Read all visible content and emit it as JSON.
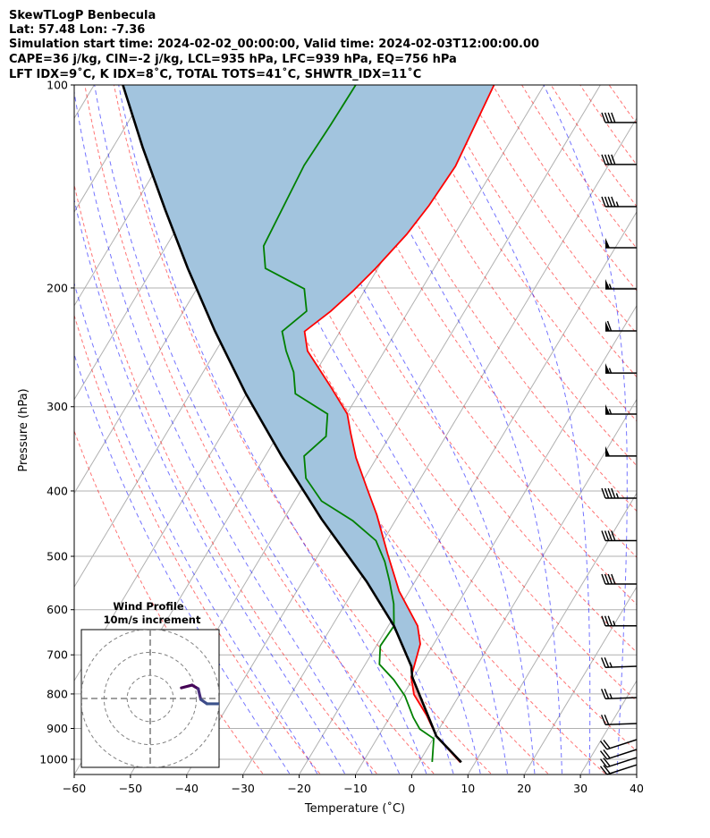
{
  "chart_data": {
    "type": "line",
    "title_lines": [
      "SkewTLogP Benbecula",
      "Lat: 57.48   Lon: -7.36",
      "Simulation start time: 2024-02-02_00:00:00, Valid time: 2024-02-03T12:00:00.00",
      "CAPE=36 j/kg, CIN=-2 j/kg, LCL=935 hPa, LFC=939 hPa, EQ=756 hPa",
      "LFT IDX=9˚C, K IDX=8˚C, TOTAL TOTS=41˚C, SHWTR_IDX=11˚C"
    ],
    "xlabel": "Temperature (˚C)",
    "ylabel": "Pressure (hPa)",
    "xlim": [
      -60,
      40
    ],
    "ylim": [
      1050,
      100
    ],
    "xticks": [
      "−60",
      "−50",
      "−40",
      "−30",
      "−20",
      "−10",
      "0",
      "10",
      "20",
      "30",
      "40"
    ],
    "xtick_values": [
      -60,
      -50,
      -40,
      -30,
      -20,
      -10,
      0,
      10,
      20,
      30,
      40
    ],
    "yticks": [
      "100",
      "200",
      "300",
      "400",
      "500",
      "600",
      "700",
      "800",
      "900",
      "1000"
    ],
    "ytick_values": [
      100,
      200,
      300,
      400,
      500,
      600,
      700,
      800,
      900,
      1000
    ],
    "grid": true,
    "series": [
      {
        "name": "temperature",
        "color": "#ff0000",
        "p": [
          1010,
          924,
          860,
          802,
          755,
          674.5,
          634,
          563,
          496,
          434,
          397,
          357,
          328,
          307.6,
          280,
          248,
          232,
          216.5,
          202,
          187,
          166.5,
          151,
          132,
          100
        ],
        "T": [
          7.3,
          0.3,
          -3.7,
          -8.1,
          -10.5,
          -12.4,
          -14.8,
          -21.8,
          -27.8,
          -33.9,
          -38.4,
          -43.7,
          -47.3,
          -49.9,
          -55.8,
          -63.7,
          -66.3,
          -63.8,
          -62.0,
          -60.4,
          -58.5,
          -57.6,
          -57.1,
          -58.9
        ]
      },
      {
        "name": "dewpoint",
        "color": "#008000",
        "p": [
          1009,
          932,
          902,
          867,
          805,
          762,
          723,
          679,
          634,
          588,
          545,
          509,
          474,
          443,
          414,
          383,
          355,
          332,
          307.6,
          287,
          266.6,
          248,
          232,
          216.5,
          200.6,
          187,
          173.3,
          131.6,
          114.7,
          100
        ],
        "T": [
          2.3,
          0.1,
          -3.4,
          -5.8,
          -9.6,
          -13.3,
          -17.5,
          -19.3,
          -19.0,
          -21.4,
          -24.5,
          -27.5,
          -31.3,
          -37.5,
          -45.2,
          -50.4,
          -53.1,
          -51.3,
          -53.4,
          -61.3,
          -63.9,
          -67.5,
          -70.3,
          -68.1,
          -70.9,
          -80.0,
          -82.7,
          -84.1,
          -83.7,
          -83.5
        ]
      },
      {
        "name": "parcel",
        "color": "#000000",
        "p": [
          1010,
          924,
          755,
          728,
          634,
          545,
          440,
          355,
          287,
          231.6,
          187,
          153.3,
          123.8,
          100
        ],
        "T": [
          7.5,
          0.3,
          -10.3,
          -11.6,
          -19.0,
          -28.6,
          -43.3,
          -57.1,
          -70.1,
          -82.3,
          -93.8,
          -104,
          -114.7,
          -124.9
        ]
      }
    ],
    "shading": {
      "cin_color": "#a2c4de",
      "cape_color": "#f4b6b6"
    },
    "wind_barbs": {
      "p": [
        113.7,
        131.2,
        151.5,
        174.3,
        200.6,
        231.6,
        267.4,
        307.6,
        355,
        410,
        474,
        549.6,
        634,
        728,
        810,
        885,
        935,
        967,
        994,
        1019
      ],
      "speed_kt": [
        40,
        40,
        45,
        50,
        55,
        60,
        55,
        55,
        50,
        45,
        40,
        40,
        35,
        25,
        25,
        20,
        20,
        20,
        20,
        20
      ],
      "direction_deg": [
        270,
        270,
        270,
        270,
        270,
        270,
        270,
        270,
        270,
        270,
        270,
        270,
        270,
        268,
        268,
        268,
        252,
        252,
        252,
        252
      ]
    },
    "hodograph": {
      "title": "Wind Profile",
      "subtitle": "10m/s increment",
      "rings_ms": [
        10,
        20,
        30
      ],
      "u": [
        13.5,
        18.1,
        20.8,
        21.9,
        24.6,
        29.6
      ],
      "v": [
        4.6,
        5.8,
        4.2,
        -0.4,
        -2.3,
        -2.3
      ],
      "colors": [
        "#440154",
        "#46085c",
        "#472d7b",
        "#3e4a89",
        "#3b528b"
      ]
    }
  }
}
